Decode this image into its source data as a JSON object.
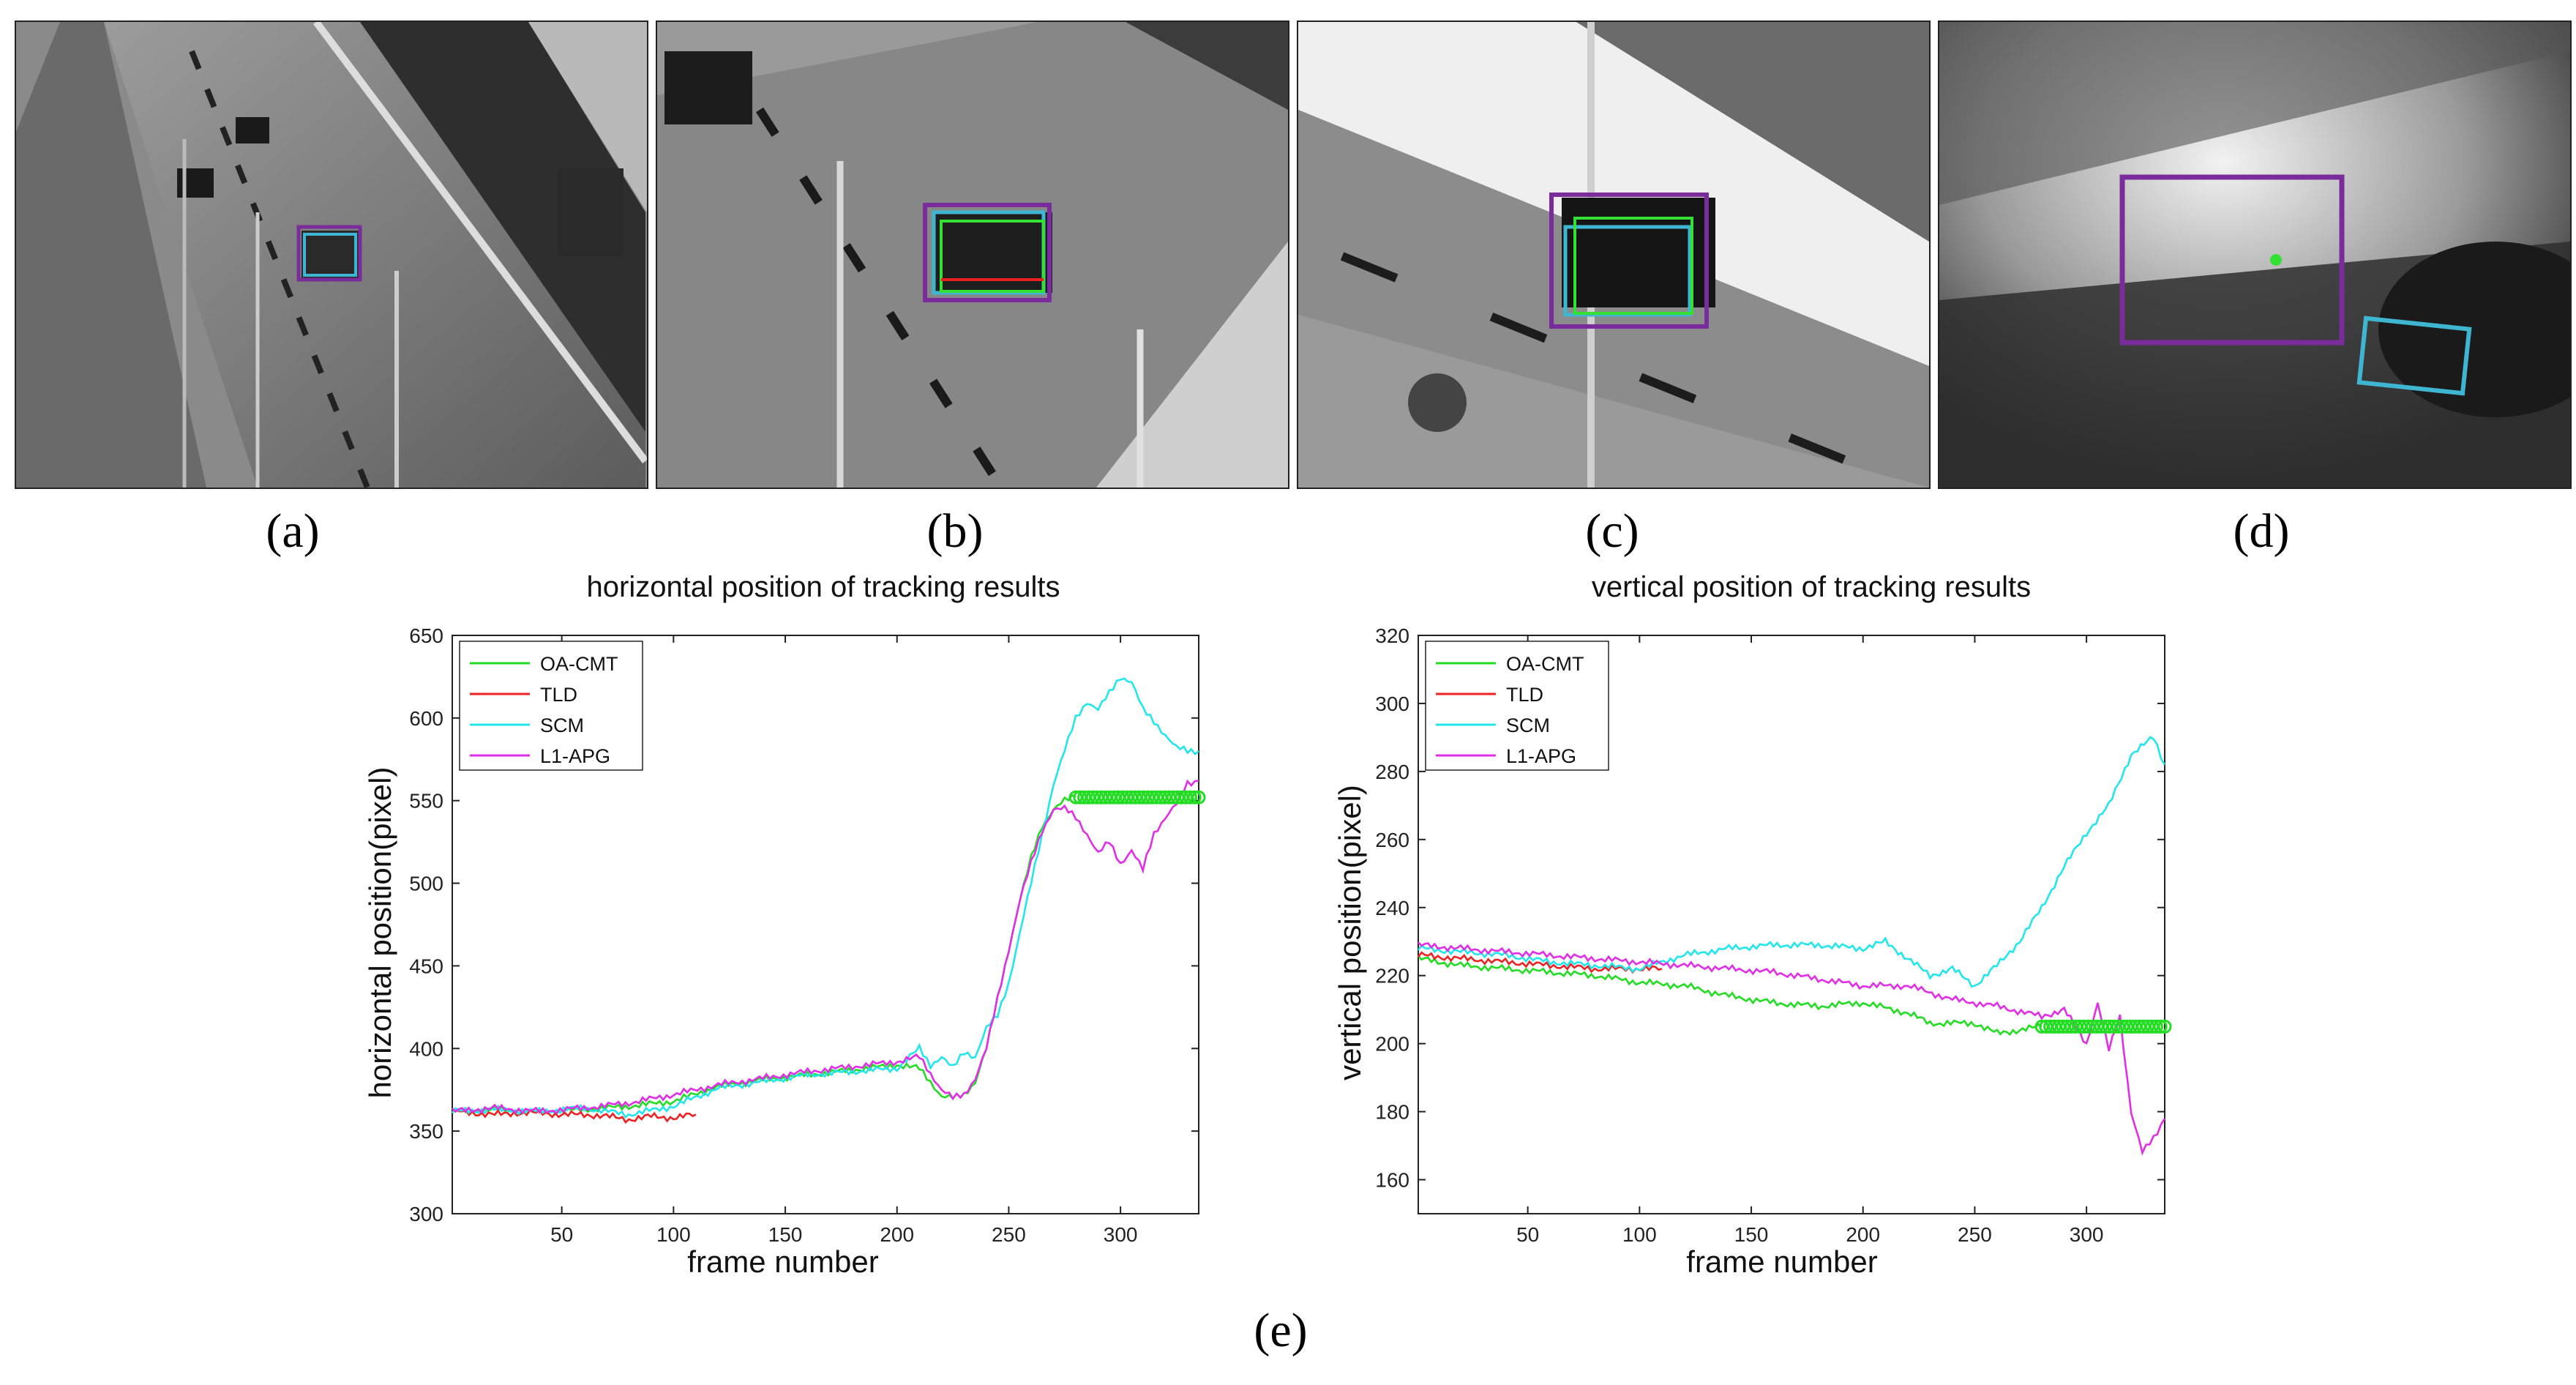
{
  "panels": [
    {
      "id": "a",
      "label": "(a)",
      "letter": "a"
    },
    {
      "id": "b",
      "label": "(b)",
      "letter": "b"
    },
    {
      "id": "c",
      "label": "(c)",
      "letter": "c"
    },
    {
      "id": "d",
      "label": "(d)",
      "letter": "d"
    }
  ],
  "panel_e_label": "(e)",
  "box_colors": {
    "purple": "#7b2c9c",
    "cyan": "#3fb6d1",
    "green": "#33e033",
    "red": "#e82020",
    "magenta": "#e040e0"
  },
  "chart_data": [
    {
      "type": "line",
      "title": "horizontal position of tracking results",
      "xlabel": "frame number",
      "ylabel": "horizontal position(pixel)",
      "xlim": [
        1,
        335
      ],
      "ylim": [
        300,
        650
      ],
      "xticks": [
        50,
        100,
        150,
        200,
        250,
        300
      ],
      "yticks": [
        300,
        350,
        400,
        450,
        500,
        550,
        600,
        650
      ],
      "legend": [
        "OA-CMT",
        "TLD",
        "SCM",
        "L1-APG"
      ],
      "series": [
        {
          "name": "OA-CMT",
          "color": "#22dd22",
          "x": [
            1,
            20,
            40,
            60,
            80,
            100,
            120,
            140,
            160,
            180,
            200,
            210,
            215,
            220,
            225,
            230,
            235,
            240,
            245,
            250,
            255,
            260,
            265,
            270,
            275,
            280
          ],
          "y": [
            362,
            363,
            362,
            363,
            365,
            368,
            377,
            381,
            384,
            387,
            390,
            388,
            380,
            371,
            370,
            372,
            380,
            400,
            430,
            460,
            490,
            515,
            535,
            545,
            550,
            552
          ]
        },
        {
          "name": "TLD",
          "color": "#ee2222",
          "x": [
            1,
            10,
            20,
            30,
            40,
            50,
            60,
            70,
            80,
            90,
            100,
            110
          ],
          "y": [
            362,
            361,
            360,
            361,
            361,
            360,
            360,
            359,
            357,
            359,
            358,
            360
          ]
        },
        {
          "name": "SCM",
          "color": "#22e6ee",
          "x": [
            1,
            20,
            40,
            60,
            80,
            100,
            120,
            140,
            160,
            180,
            200,
            210,
            215,
            220,
            225,
            230,
            235,
            240,
            245,
            250,
            255,
            260,
            265,
            270,
            275,
            280,
            285,
            290,
            295,
            300,
            305,
            310,
            315,
            320,
            325,
            330,
            335
          ],
          "y": [
            362,
            363,
            362,
            364,
            360,
            365,
            376,
            380,
            384,
            386,
            388,
            400,
            390,
            395,
            388,
            398,
            395,
            412,
            420,
            440,
            470,
            500,
            530,
            560,
            580,
            600,
            610,
            605,
            615,
            625,
            622,
            605,
            598,
            590,
            582,
            580,
            580
          ]
        },
        {
          "name": "L1-APG",
          "color": "#e22ee8",
          "x": [
            1,
            20,
            40,
            60,
            80,
            100,
            120,
            140,
            160,
            180,
            200,
            210,
            215,
            220,
            225,
            230,
            235,
            240,
            245,
            250,
            255,
            260,
            265,
            270,
            275,
            280,
            285,
            290,
            295,
            300,
            305,
            310,
            315,
            320,
            325,
            330,
            335
          ],
          "y": [
            362,
            364,
            362,
            364,
            367,
            372,
            378,
            382,
            386,
            389,
            392,
            395,
            385,
            375,
            370,
            372,
            382,
            400,
            430,
            460,
            490,
            512,
            532,
            545,
            545,
            540,
            530,
            518,
            525,
            512,
            520,
            508,
            530,
            540,
            548,
            560,
            562
          ]
        }
      ],
      "markers": {
        "name": "OA-CMT",
        "x_start": 280,
        "x_end": 335,
        "y": 552,
        "count": 30
      }
    },
    {
      "type": "line",
      "title": "vertical position of tracking results",
      "xlabel": "frame number",
      "ylabel": "vertical position(pixel)",
      "xlim": [
        1,
        335
      ],
      "ylim": [
        150,
        320
      ],
      "xticks": [
        50,
        100,
        150,
        200,
        250,
        300
      ],
      "yticks": [
        160,
        180,
        200,
        220,
        240,
        260,
        280,
        300,
        320
      ],
      "legend": [
        "OA-CMT",
        "TLD",
        "SCM",
        "L1-APG"
      ],
      "series": [
        {
          "name": "OA-CMT",
          "color": "#22dd22",
          "x": [
            1,
            20,
            40,
            60,
            80,
            100,
            120,
            140,
            160,
            180,
            200,
            220,
            230,
            250,
            260,
            270,
            280
          ],
          "y": [
            225,
            223,
            222,
            221,
            220,
            218,
            217,
            214,
            212,
            211,
            212,
            209,
            206,
            206,
            203,
            204,
            205
          ]
        },
        {
          "name": "TLD",
          "color": "#ee2222",
          "x": [
            1,
            20,
            40,
            60,
            80,
            100,
            110
          ],
          "y": [
            226,
            225,
            224,
            223,
            222,
            222,
            222
          ]
        },
        {
          "name": "SCM",
          "color": "#22e6ee",
          "x": [
            1,
            20,
            40,
            60,
            80,
            100,
            120,
            140,
            160,
            180,
            200,
            210,
            220,
            230,
            240,
            250,
            260,
            270,
            280,
            290,
            300,
            310,
            320,
            330,
            335
          ],
          "y": [
            228,
            227,
            226,
            224,
            223,
            222,
            226,
            228,
            229,
            229,
            228,
            230,
            225,
            220,
            222,
            217,
            223,
            230,
            240,
            252,
            262,
            270,
            285,
            290,
            282
          ]
        },
        {
          "name": "L1-APG",
          "color": "#e22ee8",
          "x": [
            1,
            20,
            40,
            60,
            80,
            100,
            120,
            140,
            160,
            180,
            200,
            220,
            240,
            260,
            280,
            290,
            300,
            305,
            310,
            315,
            320,
            325,
            330,
            335
          ],
          "y": [
            229,
            228,
            227,
            226,
            225,
            224,
            223,
            222,
            221,
            219,
            217,
            217,
            213,
            211,
            208,
            210,
            200,
            212,
            198,
            208,
            180,
            168,
            172,
            178
          ]
        }
      ],
      "markers": {
        "name": "OA-CMT",
        "x_start": 280,
        "x_end": 335,
        "y": 205,
        "count": 30
      }
    }
  ]
}
